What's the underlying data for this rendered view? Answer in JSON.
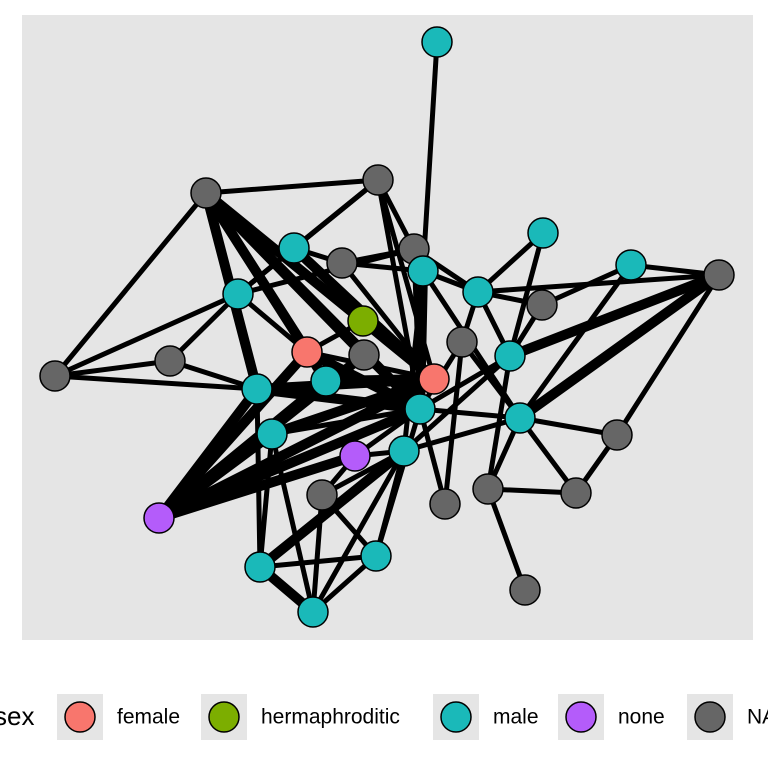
{
  "legend": {
    "title": "sex",
    "entries": [
      {
        "label": "female",
        "color": "#f8766d"
      },
      {
        "label": "hermaphroditic",
        "color": "#7cae00"
      },
      {
        "label": "male",
        "color": "#1ab9b9"
      },
      {
        "label": "none",
        "color": "#b45cfa"
      },
      {
        "label": "NA",
        "color": "#666666"
      }
    ]
  }
}
